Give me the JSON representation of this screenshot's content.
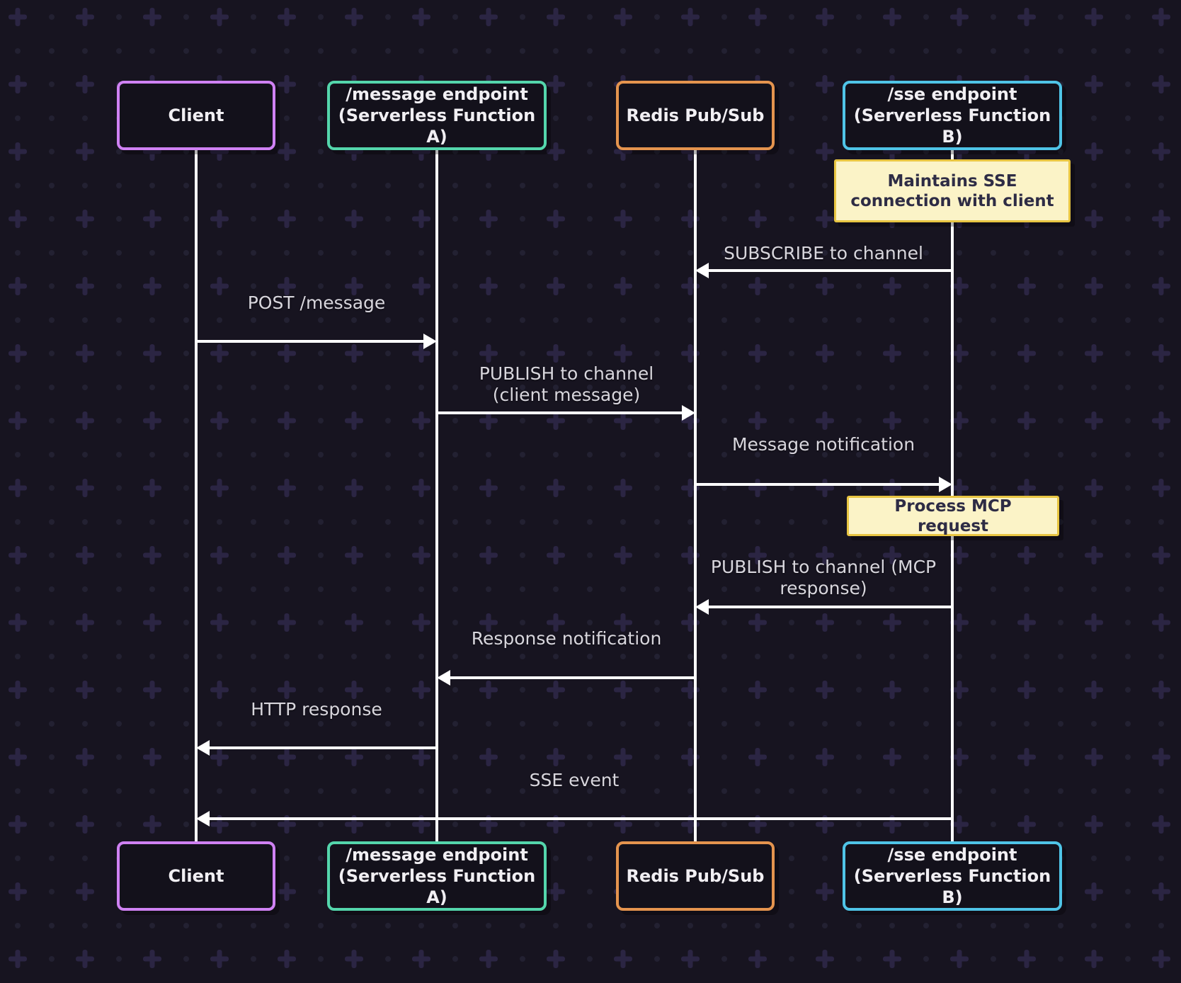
{
  "diagram": {
    "type": "sequence-diagram",
    "participants": [
      {
        "id": "client",
        "name": "Client",
        "accent_color": "#cf81f3"
      },
      {
        "id": "message-endpoint",
        "name": "/message endpoint (Serverless Function A)",
        "accent_color": "#54d6ac"
      },
      {
        "id": "redis",
        "name": "Redis Pub/Sub",
        "accent_color": "#e5944e"
      },
      {
        "id": "sse-endpoint",
        "name": "/sse endpoint (Serverless Function B)",
        "accent_color": "#4fc4e7"
      }
    ],
    "notes": [
      {
        "text": "Maintains SSE connection with client",
        "over": "sse-endpoint"
      },
      {
        "text": "Process MCP request",
        "over": "sse-endpoint"
      }
    ],
    "messages": [
      {
        "label": "SUBSCRIBE to channel",
        "from": "sse-endpoint",
        "to": "redis",
        "direction": "left"
      },
      {
        "label": "POST /message",
        "from": "client",
        "to": "message-endpoint",
        "direction": "right"
      },
      {
        "label": "PUBLISH to channel (client message)",
        "from": "message-endpoint",
        "to": "redis",
        "direction": "right"
      },
      {
        "label": "Message notification",
        "from": "redis",
        "to": "sse-endpoint",
        "direction": "right"
      },
      {
        "label": "PUBLISH to channel (MCP response)",
        "from": "sse-endpoint",
        "to": "redis",
        "direction": "left"
      },
      {
        "label": "Response notification",
        "from": "redis",
        "to": "message-endpoint",
        "direction": "left"
      },
      {
        "label": "HTTP response",
        "from": "message-endpoint",
        "to": "client",
        "direction": "left"
      },
      {
        "label": "SSE event",
        "from": "sse-endpoint",
        "to": "client",
        "direction": "left"
      }
    ],
    "colors": {
      "background": "#171420",
      "pattern_plus": "#2b2543",
      "pattern_dot": "#232132",
      "actor_fill": "#13111b",
      "actor_text": "#f1eff3",
      "accent_purple": "#cf81f3",
      "accent_teal": "#54d6ac",
      "accent_orange": "#e5944e",
      "accent_cyan": "#4fc4e7",
      "note_fill": "#fbf3c7",
      "note_border": "#e8c542",
      "note_text": "#2e2c45",
      "line_color": "#ffffff",
      "message_text": "#d8d6dd"
    }
  }
}
